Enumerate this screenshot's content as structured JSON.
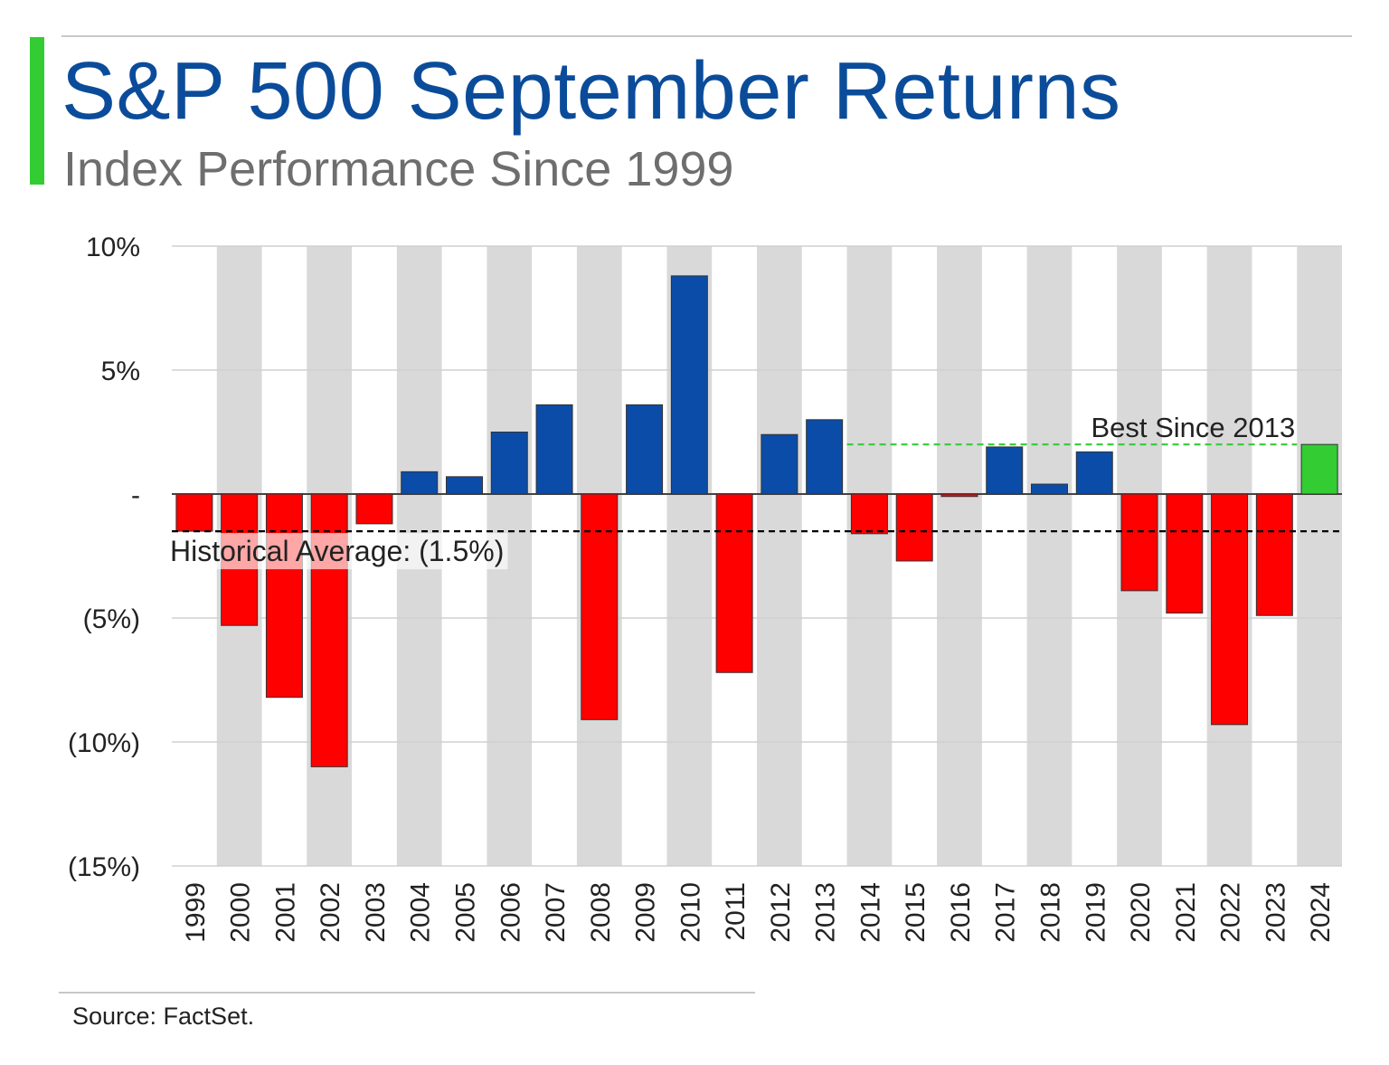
{
  "header": {
    "title": "S&P 500 September Returns",
    "subtitle": "Index Performance Since 1999"
  },
  "footer": {
    "source": "Source: FactSet."
  },
  "colors": {
    "accent": "#33cc33",
    "title": "#0b4c9a",
    "positive": "#0b4ca8",
    "negative": "#ff0000",
    "highlight": "#33cc33",
    "band": "#d9d9d9"
  },
  "chart_data": {
    "type": "bar",
    "title": "S&P 500 September Returns",
    "subtitle": "Index Performance Since 1999",
    "xlabel": "",
    "ylabel": "",
    "ylim": [
      -15,
      10
    ],
    "y_ticks": [
      {
        "value": 10,
        "label": "10%"
      },
      {
        "value": 5,
        "label": "5%"
      },
      {
        "value": 0,
        "label": "-"
      },
      {
        "value": -5,
        "label": "(5%)"
      },
      {
        "value": -10,
        "label": "(10%)"
      },
      {
        "value": -15,
        "label": "(15%)"
      }
    ],
    "categories": [
      "1999",
      "2000",
      "2001",
      "2002",
      "2003",
      "2004",
      "2005",
      "2006",
      "2007",
      "2008",
      "2009",
      "2010",
      "2011",
      "2012",
      "2013",
      "2014",
      "2015",
      "2016",
      "2017",
      "2018",
      "2019",
      "2020",
      "2021",
      "2022",
      "2023",
      "2024"
    ],
    "values": [
      -1.5,
      -5.3,
      -8.2,
      -11.0,
      -1.2,
      0.9,
      0.7,
      2.5,
      3.6,
      -9.1,
      3.6,
      8.8,
      -7.2,
      2.4,
      3.0,
      -1.6,
      -2.7,
      -0.1,
      1.9,
      0.4,
      1.7,
      -3.9,
      -4.8,
      -9.3,
      -4.9,
      2.0
    ],
    "highlight_category": "2024",
    "grid": true,
    "alternating_bands": true,
    "reference_lines": [
      {
        "value": -1.5,
        "label": "Historical Average: (1.5%)",
        "style": "dashed",
        "color": "#000000",
        "from": "1999",
        "to": "2024"
      },
      {
        "value": 2.0,
        "label": "Best Since 2013",
        "style": "dashed",
        "color": "#33cc33",
        "from": "2014",
        "to": "2023"
      }
    ]
  }
}
